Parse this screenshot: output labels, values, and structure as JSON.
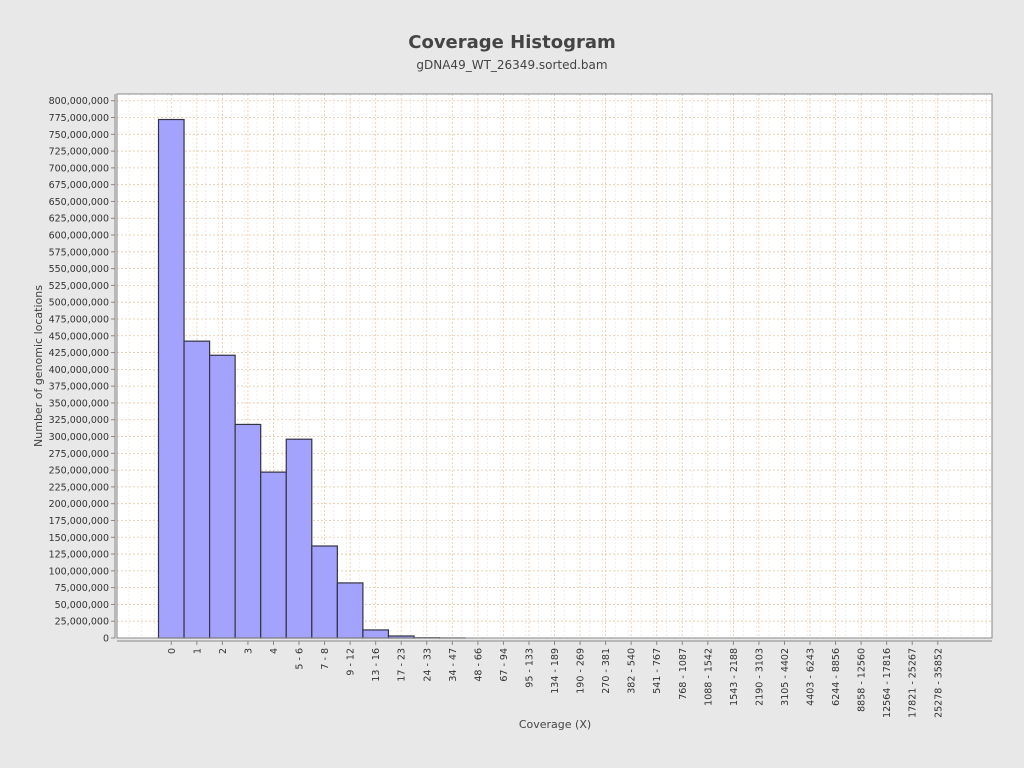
{
  "chart_data": {
    "type": "bar",
    "title": "Coverage Histogram",
    "subtitle": "gDNA49_WT_26349.sorted.bam",
    "xlabel": "Coverage (X)",
    "ylabel": "Number of genomic locations",
    "categories": [
      "0",
      "1",
      "2",
      "3",
      "4",
      "5 - 6",
      "7 - 8",
      "9 - 12",
      "13 - 16",
      "17 - 23",
      "24 - 33",
      "34 - 47",
      "48 - 66",
      "67 - 94",
      "95 - 133",
      "134 - 189",
      "190 - 269",
      "270 - 381",
      "382 - 540",
      "541 - 767",
      "768 - 1087",
      "1088 - 1542",
      "1543 - 2188",
      "2190 - 3103",
      "3105 - 4402",
      "4403 - 6243",
      "6244 - 8856",
      "8858 - 12560",
      "12564 - 17816",
      "17821 - 25267",
      "25278 - 35852"
    ],
    "values": [
      772000000,
      442000000,
      421000000,
      318000000,
      247000000,
      296000000,
      137000000,
      82000000,
      12000000,
      3000000,
      400000,
      100000,
      0,
      0,
      0,
      0,
      0,
      0,
      0,
      0,
      0,
      0,
      0,
      0,
      0,
      0,
      0,
      0,
      0,
      0,
      0
    ],
    "ylim": [
      0,
      810000000
    ],
    "yticks": [
      0,
      25000000,
      50000000,
      75000000,
      100000000,
      125000000,
      150000000,
      175000000,
      200000000,
      225000000,
      250000000,
      275000000,
      300000000,
      325000000,
      350000000,
      375000000,
      400000000,
      425000000,
      450000000,
      475000000,
      500000000,
      525000000,
      550000000,
      575000000,
      600000000,
      625000000,
      650000000,
      675000000,
      700000000,
      725000000,
      750000000,
      775000000,
      800000000
    ],
    "ytick_labels": [
      "0",
      "25,000,000",
      "50,000,000",
      "75,000,000",
      "100,000,000",
      "125,000,000",
      "150,000,000",
      "175,000,000",
      "200,000,000",
      "225,000,000",
      "250,000,000",
      "275,000,000",
      "300,000,000",
      "325,000,000",
      "350,000,000",
      "375,000,000",
      "400,000,000",
      "425,000,000",
      "450,000,000",
      "475,000,000",
      "500,000,000",
      "525,000,000",
      "550,000,000",
      "575,000,000",
      "600,000,000",
      "625,000,000",
      "650,000,000",
      "675,000,000",
      "700,000,000",
      "725,000,000",
      "750,000,000",
      "775,000,000",
      "800,000,000"
    ],
    "grid": true,
    "legend": "none",
    "colors": {
      "bar_fill": "#a3a3fd",
      "bar_stroke": "#333344",
      "grid": "#e6c8a8",
      "plot_background": "#ffffff",
      "page_background": "#e8e8e8"
    }
  }
}
